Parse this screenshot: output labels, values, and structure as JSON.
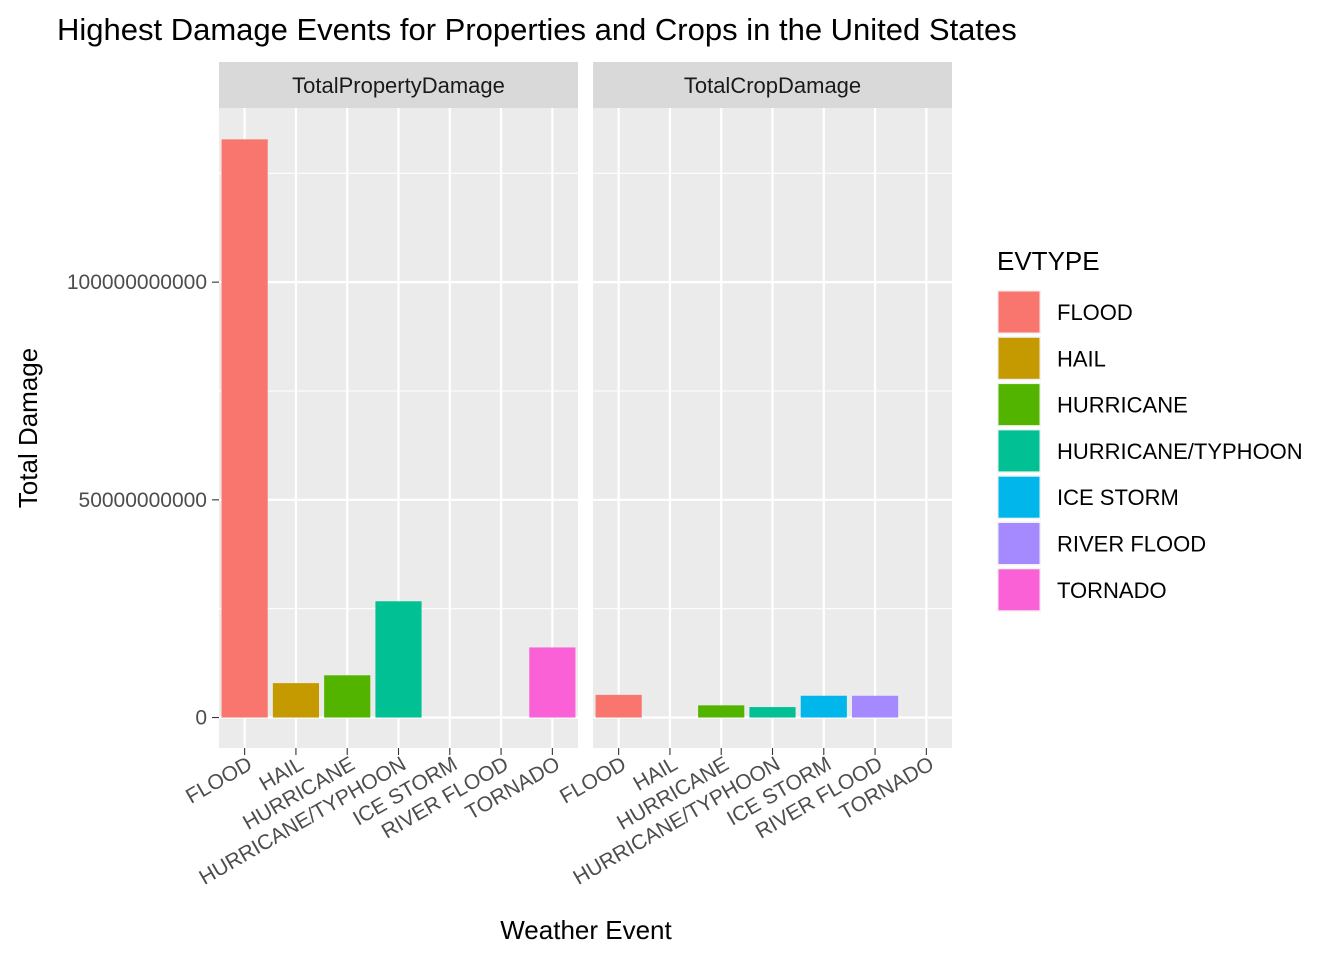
{
  "chart_data": {
    "type": "bar",
    "title": "Highest Damage Events for Properties and Crops in the United States",
    "xlabel": "Weather Event",
    "ylabel": "Total Damage",
    "ylim": [
      -7000000000,
      140000000000
    ],
    "y_ticks": [
      0,
      50000000000,
      100000000000
    ],
    "y_tick_labels": [
      "0",
      "50000000000",
      "100000000000"
    ],
    "categories": [
      "FLOOD",
      "HAIL",
      "HURRICANE",
      "HURRICANE/TYPHOON",
      "ICE STORM",
      "RIVER FLOOD",
      "TORNADO"
    ],
    "grid": true,
    "legend_position": "right",
    "legend_title": "EVTYPE",
    "colors": {
      "FLOOD": "#F8766D",
      "HAIL": "#C49A00",
      "HURRICANE": "#53B400",
      "HURRICANE/TYPHOON": "#00C094",
      "ICE STORM": "#00B6EB",
      "RIVER FLOOD": "#A58AFF",
      "TORNADO": "#FB61D7"
    },
    "panels": [
      {
        "name": "TotalPropertyDamage",
        "values": [
          132800000000,
          7900000000,
          9700000000,
          26700000000,
          0,
          0,
          16100000000
        ]
      },
      {
        "name": "TotalCropDamage",
        "values": [
          5200000000,
          0,
          2800000000,
          2400000000,
          5000000000,
          5000000000,
          0
        ]
      }
    ]
  }
}
